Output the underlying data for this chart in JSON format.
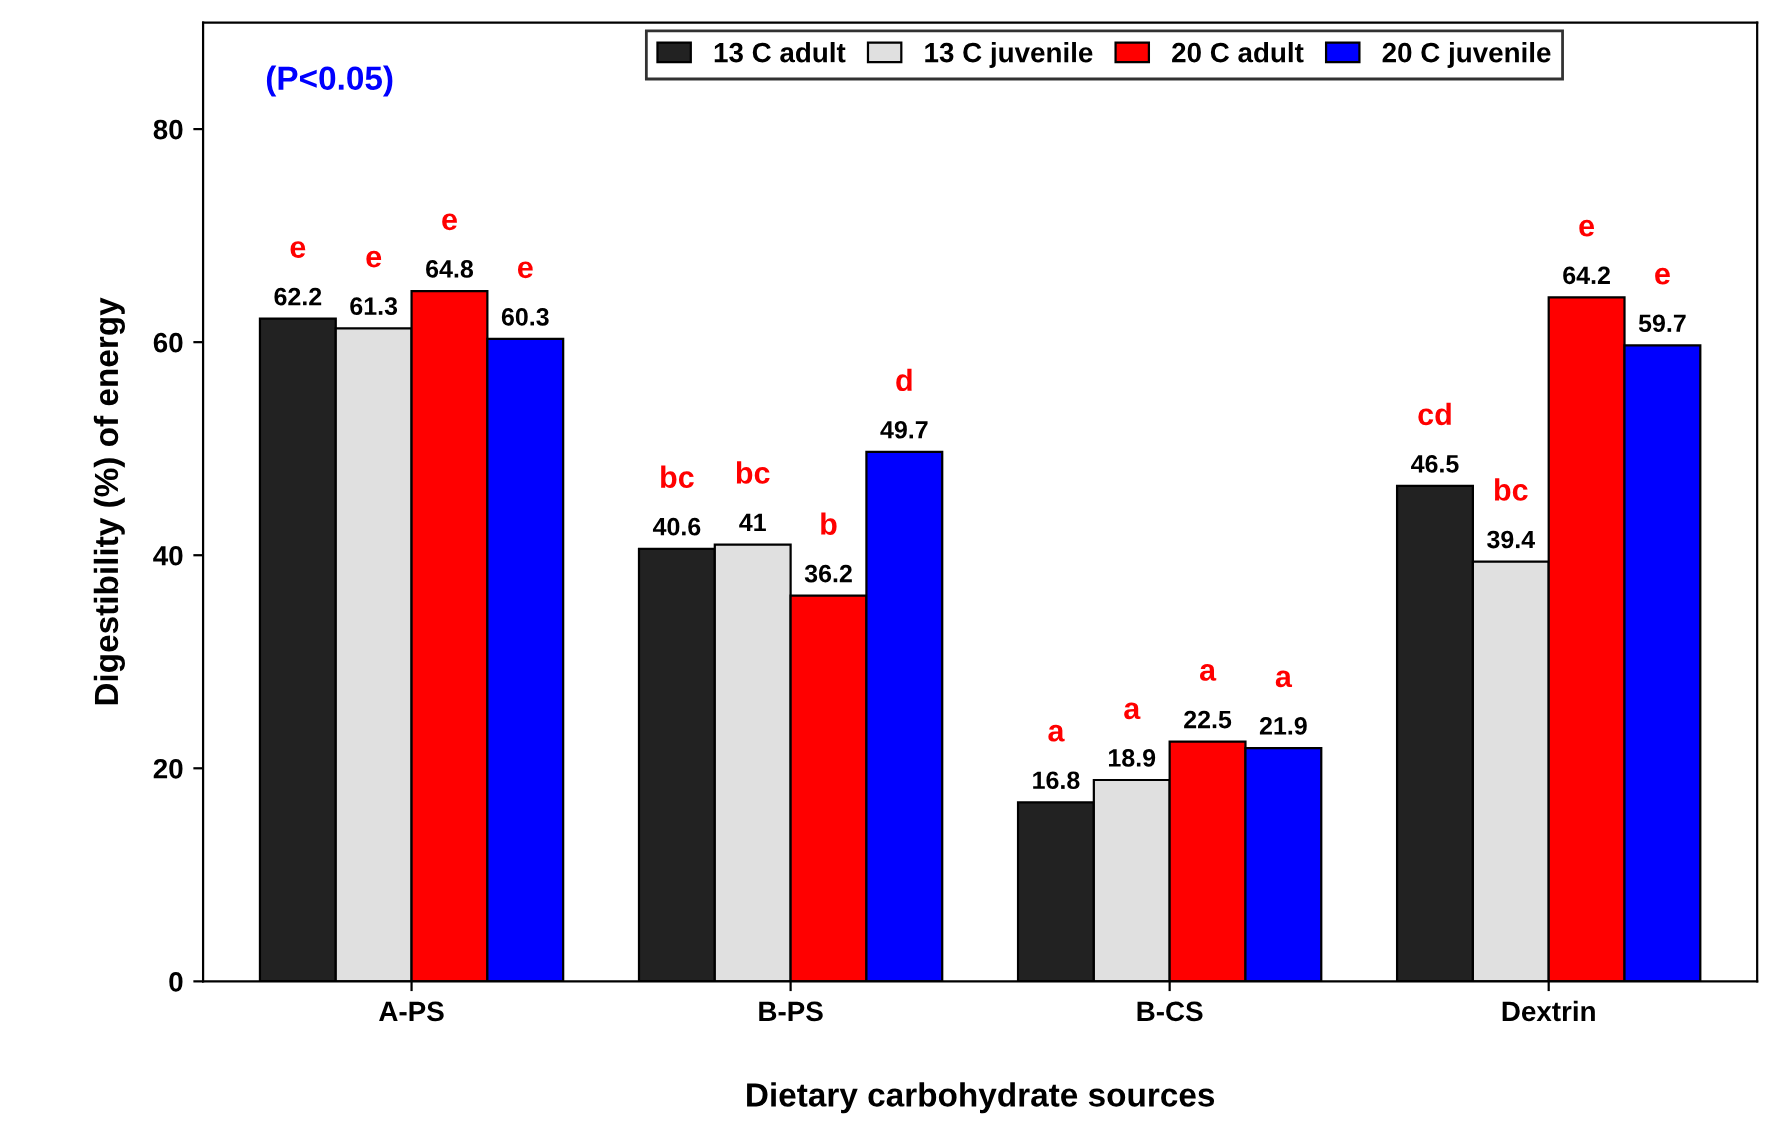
{
  "chart_data": {
    "type": "bar",
    "xlabel": "Dietary carbohydrate sources",
    "ylabel": "Digestibility (%) of energy",
    "categories": [
      "A-PS",
      "B-PS",
      "B-CS",
      "Dextrin"
    ],
    "series": [
      {
        "name": "13 C adult",
        "color": "#222222",
        "values": [
          62.2,
          40.6,
          16.8,
          46.5
        ]
      },
      {
        "name": "13 C juvenile",
        "color": "#e0e0e0",
        "values": [
          61.3,
          41,
          18.9,
          39.4
        ]
      },
      {
        "name": "20 C adult",
        "color": "#ff0000",
        "values": [
          64.8,
          36.2,
          22.5,
          64.2
        ]
      },
      {
        "name": "20 C juvenile",
        "color": "#0000ff",
        "values": [
          60.3,
          49.7,
          21.9,
          59.7
        ]
      }
    ],
    "ylim": [
      0,
      90
    ],
    "yticks": [
      0,
      20,
      40,
      60,
      80
    ],
    "data_labels": true,
    "legend": "top",
    "grid": false,
    "annotations": [
      "(P<0.05)",
      "e",
      "e",
      "e",
      "e",
      "bc",
      "bc",
      "b",
      "d",
      "a",
      "a",
      "a",
      "a",
      "cd",
      "bc",
      "e",
      "e"
    ]
  }
}
